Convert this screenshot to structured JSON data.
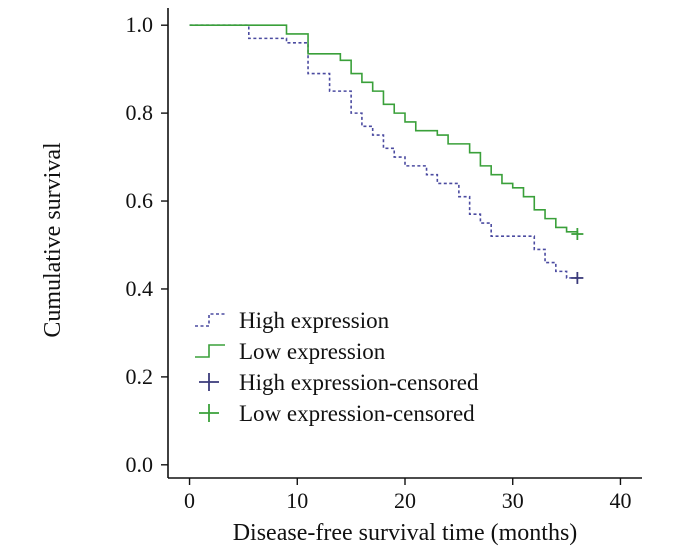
{
  "chart_data": {
    "type": "line",
    "subtype": "kaplan-meier step survival curve",
    "xlabel": "Disease-free survival time (months)",
    "ylabel": "Cumulative survival",
    "xlim": [
      -2,
      42
    ],
    "ylim": [
      -0.03,
      1.03
    ],
    "xticks": [
      0,
      10,
      20,
      30,
      40
    ],
    "xtick_labels": [
      "0",
      "10",
      "20",
      "30",
      "40"
    ],
    "yticks": [
      0.0,
      0.2,
      0.4,
      0.6,
      0.8,
      1.0
    ],
    "ytick_labels": [
      "0.0",
      "0.2",
      "0.4",
      "0.6",
      "0.8",
      "1.0"
    ],
    "grid": false,
    "legend_position": "bottom-left",
    "series": [
      {
        "name": "High expression",
        "color": "#4b4ba0",
        "style": "dotted",
        "steps": [
          [
            0,
            1.0
          ],
          [
            5.5,
            0.97
          ],
          [
            9,
            0.96
          ],
          [
            11,
            0.89
          ],
          [
            13,
            0.85
          ],
          [
            15,
            0.8
          ],
          [
            16,
            0.77
          ],
          [
            17,
            0.75
          ],
          [
            18,
            0.72
          ],
          [
            19,
            0.7
          ],
          [
            20,
            0.68
          ],
          [
            22,
            0.66
          ],
          [
            23,
            0.64
          ],
          [
            25,
            0.61
          ],
          [
            26,
            0.57
          ],
          [
            27,
            0.55
          ],
          [
            28,
            0.52
          ],
          [
            32,
            0.49
          ],
          [
            33,
            0.46
          ],
          [
            34,
            0.44
          ],
          [
            35,
            0.425
          ],
          [
            36,
            0.425
          ]
        ],
        "censored": [
          [
            36,
            0.425
          ]
        ]
      },
      {
        "name": "Low expression",
        "color": "#3aa03a",
        "style": "solid",
        "steps": [
          [
            0,
            1.0
          ],
          [
            9,
            0.98
          ],
          [
            11,
            0.935
          ],
          [
            14,
            0.92
          ],
          [
            15,
            0.89
          ],
          [
            16,
            0.87
          ],
          [
            17,
            0.85
          ],
          [
            18,
            0.82
          ],
          [
            19,
            0.8
          ],
          [
            20,
            0.78
          ],
          [
            21,
            0.76
          ],
          [
            23,
            0.75
          ],
          [
            24,
            0.73
          ],
          [
            25,
            0.73
          ],
          [
            26,
            0.71
          ],
          [
            27,
            0.68
          ],
          [
            28,
            0.66
          ],
          [
            29,
            0.64
          ],
          [
            30,
            0.63
          ],
          [
            31,
            0.61
          ],
          [
            32,
            0.58
          ],
          [
            33,
            0.56
          ],
          [
            34,
            0.54
          ],
          [
            35,
            0.53
          ],
          [
            36,
            0.525
          ]
        ],
        "censored": [
          [
            36,
            0.525
          ]
        ]
      }
    ],
    "legend": [
      {
        "label": "High expression",
        "marker": "line",
        "style": "dotted",
        "color": "#4b4ba0"
      },
      {
        "label": "Low expression",
        "marker": "line",
        "style": "solid",
        "color": "#3aa03a"
      },
      {
        "label": "High expression-censored",
        "marker": "plus",
        "color": "#3a3a7a"
      },
      {
        "label": "Low expression-censored",
        "marker": "plus",
        "color": "#3aa03a"
      }
    ]
  }
}
